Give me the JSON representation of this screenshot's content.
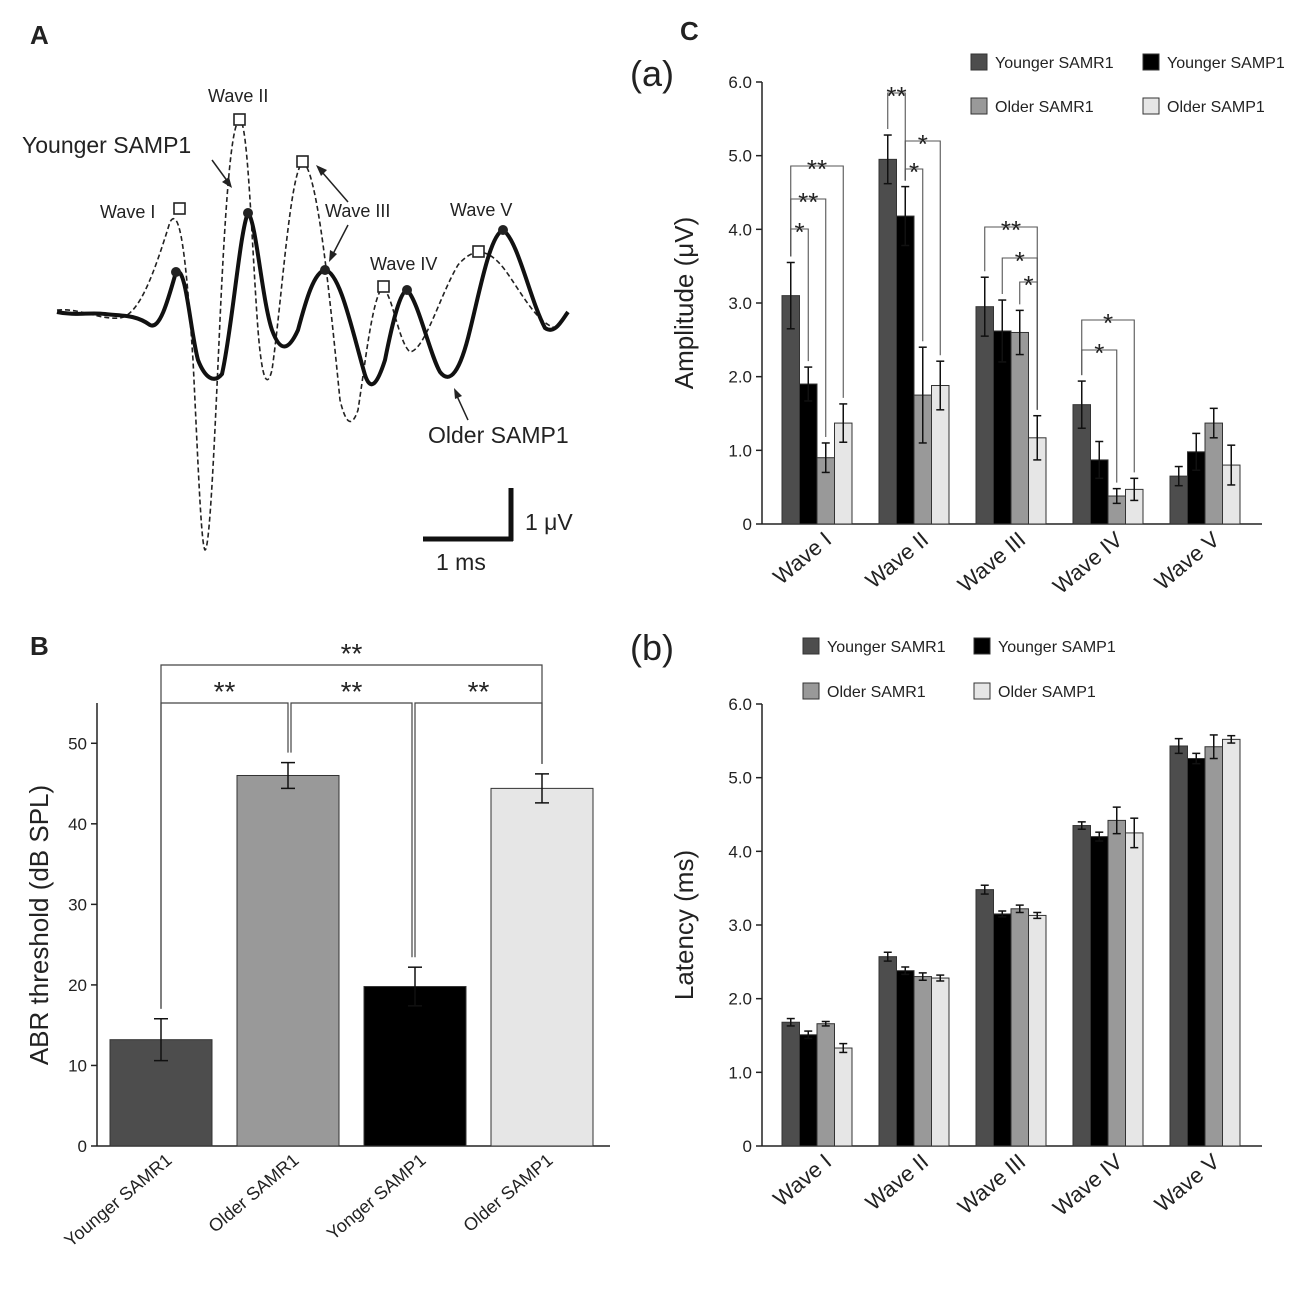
{
  "panels": {
    "a": "A",
    "b": "B",
    "c": "C",
    "c_top": "(a)",
    "c_bottom": "(b)"
  },
  "panel_a": {
    "trace_labels": [
      "Younger SAMP1",
      "Older SAMP1"
    ],
    "wave_labels": [
      "Wave I",
      "Wave II",
      "Wave III",
      "Wave IV",
      "Wave V"
    ],
    "scale_bar": {
      "x_label": "1 ms",
      "y_label": "1 μV"
    }
  },
  "colors": {
    "younger_samr1": "#4d4d4d",
    "younger_samp1": "#000000",
    "older_samr1": "#999999",
    "older_samp1": "#e6e6e6"
  },
  "chart_data": [
    {
      "id": "B",
      "type": "bar",
      "categories": [
        "Younger SAMR1",
        "Older SAMR1",
        "Yonger SAMP1",
        "Older SAMP1"
      ],
      "values": [
        13.2,
        46,
        19.8,
        44.4
      ],
      "errors": [
        2.6,
        1.6,
        2.4,
        1.8
      ],
      "colors": [
        "#4d4d4d",
        "#999999",
        "#000000",
        "#e6e6e6"
      ],
      "ylabel": "ABR threshold (dB SPL)",
      "ylim": [
        0,
        55
      ],
      "yticks": [
        "0",
        "10",
        "20",
        "30",
        "40",
        "50"
      ],
      "significance": [
        {
          "from": 0,
          "to": 3,
          "label": "**",
          "level": 1
        },
        {
          "from": 0,
          "to": 1,
          "label": "**",
          "level": 0
        },
        {
          "from": 1,
          "to": 2,
          "label": "**",
          "level": 0
        },
        {
          "from": 2,
          "to": 3,
          "label": "**",
          "level": 0
        }
      ]
    },
    {
      "id": "C-a",
      "type": "bar",
      "categories": [
        "Wave I",
        "Wave II",
        "Wave III",
        "Wave IV",
        "Wave V"
      ],
      "series": [
        {
          "name": "Younger SAMR1",
          "values": [
            3.1,
            4.95,
            2.95,
            1.62,
            0.65
          ],
          "errors": [
            0.45,
            0.33,
            0.4,
            0.32,
            0.13
          ]
        },
        {
          "name": "Younger SAMP1",
          "values": [
            1.9,
            4.18,
            2.62,
            0.87,
            0.98
          ],
          "errors": [
            0.23,
            0.4,
            0.42,
            0.25,
            0.25
          ]
        },
        {
          "name": "Older SAMR1",
          "values": [
            0.9,
            1.75,
            2.6,
            0.38,
            1.37
          ],
          "errors": [
            0.2,
            0.65,
            0.3,
            0.1,
            0.2
          ]
        },
        {
          "name": "Older SAMP1",
          "values": [
            1.37,
            1.88,
            1.17,
            0.47,
            0.8
          ],
          "errors": [
            0.26,
            0.33,
            0.3,
            0.15,
            0.27
          ]
        }
      ],
      "ylabel": "Amplitude (μV)",
      "ylim": [
        0,
        6
      ],
      "yticks": [
        "0",
        "1.0",
        "2.0",
        "3.0",
        "4.0",
        "5.0",
        "6.0"
      ],
      "significance": [
        {
          "cat": 0,
          "from": 0,
          "to": 3,
          "label": "**"
        },
        {
          "cat": 0,
          "from": 0,
          "to": 2,
          "label": "**"
        },
        {
          "cat": 0,
          "from": 0,
          "to": 1,
          "label": "*"
        },
        {
          "cat": 1,
          "from": 0,
          "to": 1,
          "label": "**"
        },
        {
          "cat": 1,
          "from": 1,
          "to": 3,
          "label": "*"
        },
        {
          "cat": 1,
          "from": 1,
          "to": 2,
          "label": "*"
        },
        {
          "cat": 2,
          "from": 0,
          "to": 3,
          "label": "**"
        },
        {
          "cat": 2,
          "from": 1,
          "to": 3,
          "label": "*"
        },
        {
          "cat": 2,
          "from": 2,
          "to": 3,
          "label": "*"
        },
        {
          "cat": 3,
          "from": 0,
          "to": 3,
          "label": "*"
        },
        {
          "cat": 3,
          "from": 0,
          "to": 2,
          "label": "*"
        }
      ]
    },
    {
      "id": "C-b",
      "type": "bar",
      "categories": [
        "Wave I",
        "Wave II",
        "Wave III",
        "Wave IV",
        "Wave V"
      ],
      "series": [
        {
          "name": "Younger SAMR1",
          "values": [
            1.68,
            2.57,
            3.48,
            4.35,
            5.43
          ],
          "errors": [
            0.05,
            0.06,
            0.06,
            0.05,
            0.1
          ]
        },
        {
          "name": "Younger SAMP1",
          "values": [
            1.51,
            2.38,
            3.15,
            4.2,
            5.26
          ],
          "errors": [
            0.05,
            0.05,
            0.04,
            0.06,
            0.07
          ]
        },
        {
          "name": "Older SAMR1",
          "values": [
            1.66,
            2.3,
            3.22,
            4.42,
            5.42
          ],
          "errors": [
            0.03,
            0.05,
            0.05,
            0.18,
            0.16
          ]
        },
        {
          "name": "Older SAMP1",
          "values": [
            1.33,
            2.28,
            3.13,
            4.25,
            5.52
          ],
          "errors": [
            0.06,
            0.04,
            0.04,
            0.2,
            0.05
          ]
        }
      ],
      "ylabel": "Latency (ms)",
      "ylim": [
        0,
        6
      ],
      "yticks": [
        "0",
        "1.0",
        "2.0",
        "3.0",
        "4.0",
        "5.0",
        "6.0"
      ]
    }
  ]
}
